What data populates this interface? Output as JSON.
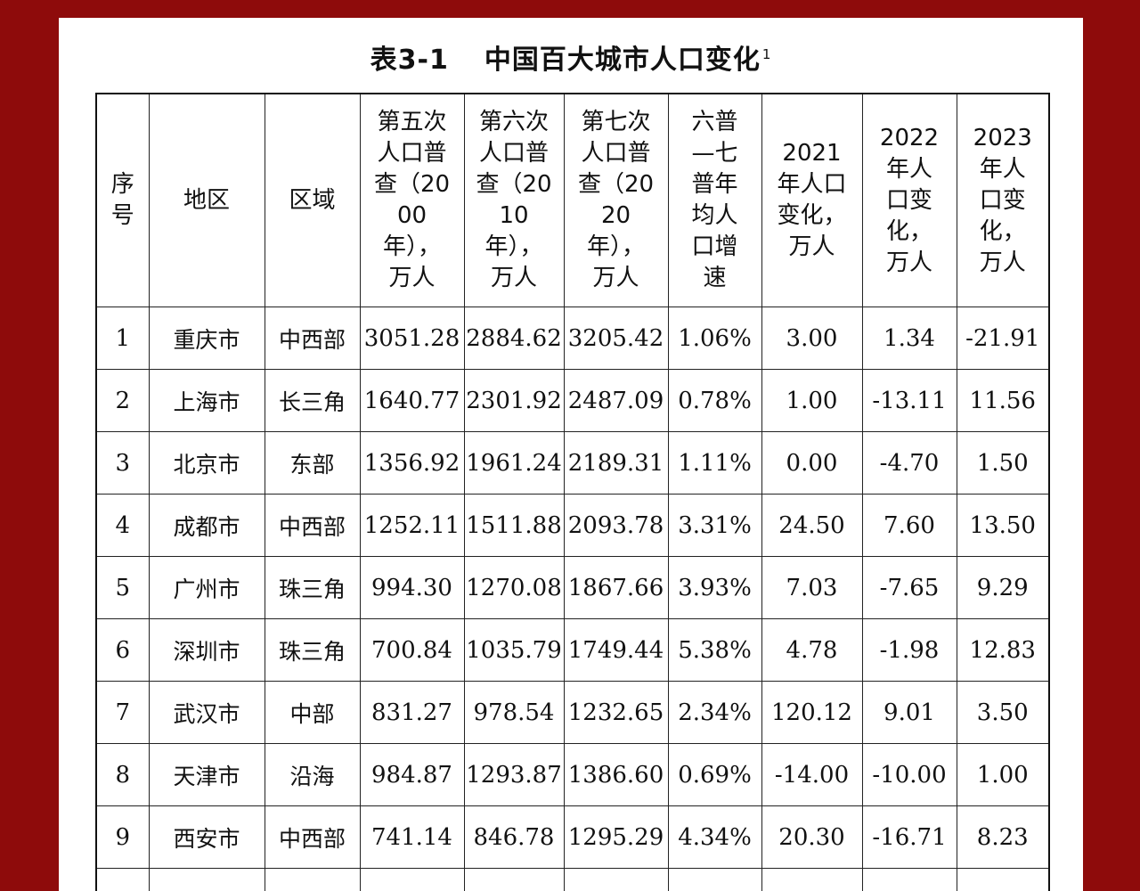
{
  "title": "表3-1",
  "title_main": "中国百大城市人口变化",
  "title_footnote": "1",
  "columns": [
    "序号",
    "地区",
    "区域",
    "第五次人口普查（2000年），万人",
    "第六次人口普查（2010年），万人",
    "第七次人口普查（2020年），万人",
    "六普—七普年均人口增速",
    "2021年人口变化，万人",
    "2022年人口变化，万人",
    "2023年人口变化，万人"
  ],
  "rows": [
    [
      "1",
      "重庆市",
      "中西部",
      "3051.28",
      "2884.62",
      "3205.42",
      "1.06%",
      "3.00",
      "1.34",
      "-21.91"
    ],
    [
      "2",
      "上海市",
      "长三角",
      "1640.77",
      "2301.92",
      "2487.09",
      "0.78%",
      "1.00",
      "-13.11",
      "11.56"
    ],
    [
      "3",
      "北京市",
      "东部",
      "1356.92",
      "1961.24",
      "2189.31",
      "1.11%",
      "0.00",
      "-4.70",
      "1.50"
    ],
    [
      "4",
      "成都市",
      "中西部",
      "1252.11",
      "1511.88",
      "2093.78",
      "3.31%",
      "24.50",
      "7.60",
      "13.50"
    ],
    [
      "5",
      "广州市",
      "珠三角",
      "994.30",
      "1270.08",
      "1867.66",
      "3.93%",
      "7.03",
      "-7.65",
      "9.29"
    ],
    [
      "6",
      "深圳市",
      "珠三角",
      "700.84",
      "1035.79",
      "1749.44",
      "5.38%",
      "4.78",
      "-1.98",
      "12.83"
    ],
    [
      "7",
      "武汉市",
      "中部",
      "831.27",
      "978.54",
      "1232.65",
      "2.34%",
      "120.12",
      "9.01",
      "3.50"
    ],
    [
      "8",
      "天津市",
      "沿海",
      "984.87",
      "1293.87",
      "1386.60",
      "0.69%",
      "-14.00",
      "-10.00",
      "1.00"
    ],
    [
      "9",
      "西安市",
      "中西部",
      "741.14",
      "846.78",
      "1295.29",
      "4.34%",
      "20.30",
      "-16.71",
      "8.23"
    ]
  ]
}
